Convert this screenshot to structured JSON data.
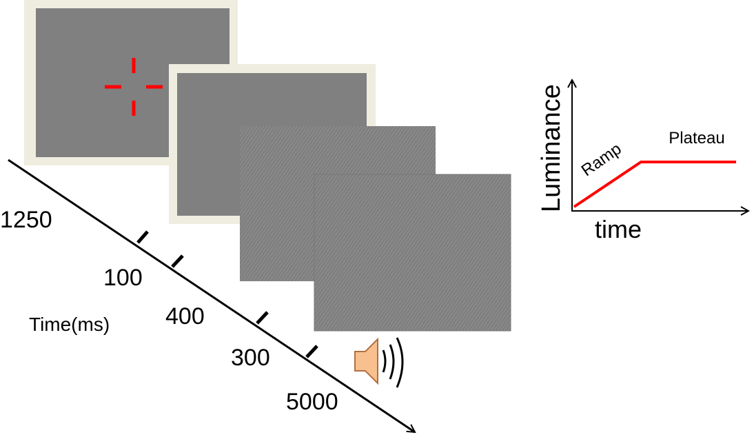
{
  "timeline": {
    "durations": [
      "1250",
      "100",
      "400",
      "300",
      "5000"
    ],
    "axis_label": "Time(ms)"
  },
  "inset": {
    "y_label": "Luminance",
    "x_label": "time",
    "segments": [
      "Ramp",
      "Plateau"
    ]
  }
}
